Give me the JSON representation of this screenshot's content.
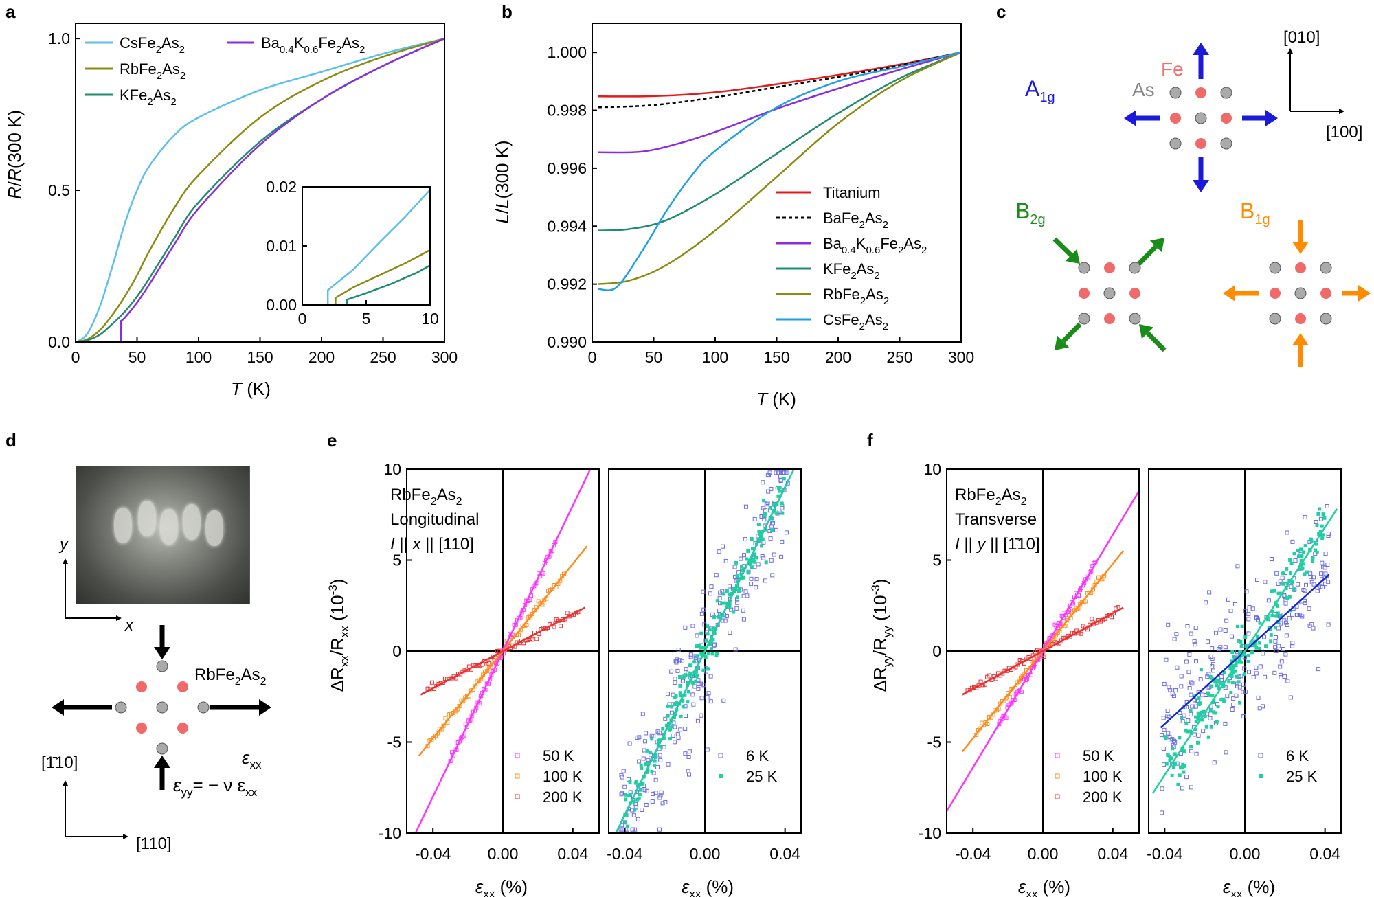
{
  "panels": {
    "a": {
      "label": "a",
      "ylabel_italic": "R",
      "ylabel_mid": "/",
      "ylabel_italic2": "R",
      "ylabel_rest": "(300 K)",
      "xlabel_italic": "T",
      "xlabel_rest": " (K)",
      "yticks": [
        "0.0",
        "0.5",
        "1.0"
      ],
      "xticks": [
        "0",
        "50",
        "100",
        "150",
        "200",
        "250",
        "300"
      ],
      "inset_yticks": [
        "0.00",
        "0.01",
        "0.02"
      ],
      "inset_xticks": [
        "0",
        "5",
        "10"
      ]
    },
    "b": {
      "label": "b",
      "ylabel_italic": "L",
      "ylabel_mid": "/",
      "ylabel_italic2": "L",
      "ylabel_rest": "(300 K)",
      "xlabel_italic": "T",
      "xlabel_rest": " (K)",
      "yticks": [
        "0.990",
        "0.992",
        "0.994",
        "0.996",
        "0.998",
        "1.000"
      ],
      "xticks": [
        "0",
        "50",
        "100",
        "150",
        "200",
        "250",
        "300"
      ]
    },
    "c": {
      "label": "c",
      "a1g": "A",
      "a1g_sub": "1g",
      "b2g": "B",
      "b2g_sub": "2g",
      "b1g": "B",
      "b1g_sub": "1g",
      "as": "As",
      "fe": "Fe",
      "dir_010": "[010]",
      "dir_100": "[100]"
    },
    "d": {
      "label": "d",
      "y": "y",
      "x": "x",
      "compound": "RbFe",
      "compound_sub": "2",
      "compound_as": "As",
      "compound_as_sub": "2",
      "exx": "ε",
      "exx_sub": "xx",
      "eyy_lhs": "ε",
      "eyy_sub": "yy",
      "eyy_rhs": "= − ν ε",
      "eyy_rhs_sub": "xx",
      "dir_110bar": "[1̄10]",
      "dir_110": "[110]"
    },
    "e": {
      "label": "e",
      "anno1": "RbFe",
      "anno1_sub": "2",
      "anno1_as": "As",
      "anno1_as_sub": "2",
      "anno2": "Longitudinal",
      "anno3_i": "I",
      "anno3_mid": " || ",
      "anno3_x": "x",
      "anno3_rest": " || [110]",
      "ylabel": "ΔR",
      "ylabel_sub": "xx",
      "ylabel_mid": "/R",
      "ylabel_sub2": "xx",
      "ylabel_rest": " (10",
      "ylabel_sup": "-3",
      "ylabel_end": ")",
      "yticks": [
        "-10",
        "-5",
        "0",
        "5",
        "10"
      ],
      "xticks": [
        "-0.04",
        "0.00",
        "0.04"
      ],
      "xlabel": "ε",
      "xlabel_sub": "xx",
      "xlabel_rest": " (%)"
    },
    "f": {
      "label": "f",
      "anno1": "RbFe",
      "anno1_sub": "2",
      "anno1_as": "As",
      "anno1_as_sub": "2",
      "anno2": "Transverse",
      "anno3_i": "I",
      "anno3_mid": " || ",
      "anno3_x": "y",
      "anno3_rest": " || [1̄10]",
      "ylabel": "ΔR",
      "ylabel_sub": "yy",
      "ylabel_mid": "/R",
      "ylabel_sub2": "yy",
      "ylabel_rest": " (10",
      "ylabel_sup": "-3",
      "ylabel_end": ")",
      "yticks": [
        "-10",
        "-5",
        "0",
        "5",
        "10"
      ],
      "xticks": [
        "-0.04",
        "0.00",
        "0.04"
      ],
      "xlabel": "ε",
      "xlabel_sub": "xx",
      "xlabel_rest": " (%)"
    }
  },
  "chart_data": [
    {
      "id": "a",
      "type": "line",
      "title": "",
      "xlabel": "T (K)",
      "ylabel": "R/R(300 K)",
      "xlim": [
        0,
        300
      ],
      "ylim": [
        0,
        1.05
      ],
      "series": [
        {
          "name": "CsFe2As2",
          "label": "CsFe",
          "sub": "2",
          "label2": "As",
          "sub2": "2",
          "color": "#5bc0eb",
          "Tc": 2,
          "points": [
            [
              2,
              0.003
            ],
            [
              10,
              0.03
            ],
            [
              20,
              0.12
            ],
            [
              30,
              0.25
            ],
            [
              40,
              0.39
            ],
            [
              50,
              0.5
            ],
            [
              60,
              0.58
            ],
            [
              80,
              0.68
            ],
            [
              100,
              0.74
            ],
            [
              150,
              0.83
            ],
            [
              200,
              0.89
            ],
            [
              250,
              0.95
            ],
            [
              300,
              1.0
            ]
          ]
        },
        {
          "name": "RbFe2As2",
          "label": "RbFe",
          "sub": "2",
          "label2": "As",
          "sub2": "2",
          "color": "#8b8b12",
          "Tc": 2.6,
          "points": [
            [
              2.6,
              0.002
            ],
            [
              10,
              0.01
            ],
            [
              20,
              0.04
            ],
            [
              30,
              0.09
            ],
            [
              40,
              0.15
            ],
            [
              50,
              0.22
            ],
            [
              60,
              0.3
            ],
            [
              80,
              0.44
            ],
            [
              100,
              0.55
            ],
            [
              150,
              0.74
            ],
            [
              200,
              0.86
            ],
            [
              250,
              0.94
            ],
            [
              300,
              1.0
            ]
          ]
        },
        {
          "name": "KFe2As2",
          "label": "KFe",
          "sub": "2",
          "label2": "As",
          "sub2": "2",
          "color": "#1e8c6e",
          "Tc": 3.5,
          "points": [
            [
              3.5,
              0.001
            ],
            [
              10,
              0.006
            ],
            [
              20,
              0.025
            ],
            [
              30,
              0.06
            ],
            [
              40,
              0.1
            ],
            [
              50,
              0.15
            ],
            [
              60,
              0.21
            ],
            [
              80,
              0.34
            ],
            [
              100,
              0.46
            ],
            [
              150,
              0.66
            ],
            [
              200,
              0.8
            ],
            [
              250,
              0.91
            ],
            [
              300,
              1.0
            ]
          ]
        },
        {
          "name": "Ba0.4K0.6Fe2As2",
          "label": "Ba",
          "sub": "0.4",
          "label2": "K",
          "sub2": "0.6",
          "label3": "Fe",
          "sub3": "2",
          "label4": "As",
          "sub4": "2",
          "color": "#8b2be2",
          "Tc": 37,
          "points": [
            [
              37,
              0.0
            ],
            [
              37,
              0.07
            ],
            [
              40,
              0.08
            ],
            [
              50,
              0.13
            ],
            [
              60,
              0.19
            ],
            [
              80,
              0.32
            ],
            [
              100,
              0.44
            ],
            [
              150,
              0.65
            ],
            [
              200,
              0.8
            ],
            [
              250,
              0.91
            ],
            [
              300,
              1.0
            ]
          ]
        }
      ],
      "inset": {
        "xlim": [
          0,
          10
        ],
        "ylim": [
          0,
          0.02
        ],
        "series": [
          {
            "name": "CsFe2As2",
            "points": [
              [
                2,
                0
              ],
              [
                2,
                0.0025
              ],
              [
                4,
                0.006
              ],
              [
                6,
                0.0105
              ],
              [
                8,
                0.0148
              ],
              [
                10,
                0.0195
              ]
            ]
          },
          {
            "name": "RbFe2As2",
            "points": [
              [
                2.6,
                0
              ],
              [
                2.6,
                0.0012
              ],
              [
                4,
                0.003
              ],
              [
                6,
                0.005
              ],
              [
                8,
                0.007
              ],
              [
                10,
                0.0093
              ]
            ]
          },
          {
            "name": "KFe2As2",
            "points": [
              [
                3.5,
                0
              ],
              [
                3.5,
                0.0009
              ],
              [
                5,
                0.002
              ],
              [
                7,
                0.0036
              ],
              [
                9,
                0.0055
              ],
              [
                10,
                0.0067
              ]
            ]
          }
        ]
      }
    },
    {
      "id": "b",
      "type": "line",
      "title": "",
      "xlabel": "T (K)",
      "ylabel": "L/L(300 K)",
      "xlim": [
        0,
        300
      ],
      "ylim": [
        0.99,
        1.001
      ],
      "series": [
        {
          "name": "Titanium",
          "label": "Titanium",
          "color": "#e41a1c",
          "dash": false,
          "points": [
            [
              5,
              0.99848
            ],
            [
              50,
              0.99849
            ],
            [
              100,
              0.99862
            ],
            [
              150,
              0.9989
            ],
            [
              200,
              0.99922
            ],
            [
              250,
              0.99958
            ],
            [
              300,
              1.0
            ]
          ]
        },
        {
          "name": "BaFe2As2",
          "label": "BaFe",
          "sub": "2",
          "label2": "As",
          "sub2": "2",
          "color": "#000000",
          "dash": true,
          "points": [
            [
              5,
              0.9981
            ],
            [
              50,
              0.99818
            ],
            [
              100,
              0.99845
            ],
            [
              150,
              0.9988
            ],
            [
              200,
              0.99915
            ],
            [
              250,
              0.99955
            ],
            [
              300,
              1.0
            ]
          ]
        },
        {
          "name": "Ba0.4K0.6Fe2As2",
          "label": "Ba",
          "sub": "0.4",
          "label2": "K",
          "sub2": "0.6",
          "label3": "Fe",
          "sub3": "2",
          "label4": "As",
          "sub4": "2",
          "color": "#8b2be2",
          "dash": false,
          "points": [
            [
              5,
              0.99655
            ],
            [
              40,
              0.99657
            ],
            [
              70,
              0.99685
            ],
            [
              100,
              0.99725
            ],
            [
              150,
              0.99805
            ],
            [
              200,
              0.99875
            ],
            [
              250,
              0.9994
            ],
            [
              300,
              1.0
            ]
          ]
        },
        {
          "name": "KFe2As2",
          "label": "KFe",
          "sub": "2",
          "label2": "As",
          "sub2": "2",
          "color": "#1e8c6e",
          "dash": false,
          "points": [
            [
              5,
              0.99385
            ],
            [
              30,
              0.9939
            ],
            [
              60,
              0.9942
            ],
            [
              100,
              0.9951
            ],
            [
              150,
              0.9965
            ],
            [
              200,
              0.9979
            ],
            [
              250,
              0.9991
            ],
            [
              300,
              1.0
            ]
          ]
        },
        {
          "name": "RbFe2As2",
          "label": "RbFe",
          "sub": "2",
          "label2": "As",
          "sub2": "2",
          "color": "#8b8b12",
          "dash": false,
          "points": [
            [
              5,
              0.992
            ],
            [
              30,
              0.99212
            ],
            [
              60,
              0.99265
            ],
            [
              100,
              0.99385
            ],
            [
              150,
              0.9957
            ],
            [
              200,
              0.99755
            ],
            [
              250,
              0.999
            ],
            [
              300,
              1.0
            ]
          ]
        },
        {
          "name": "CsFe2As2",
          "label": "CsFe",
          "sub": "2",
          "label2": "As",
          "sub2": "2",
          "color": "#1ea0e6",
          "dash": false,
          "points": [
            [
              5,
              0.99183
            ],
            [
              20,
              0.9919
            ],
            [
              40,
              0.9931
            ],
            [
              60,
              0.9945
            ],
            [
              80,
              0.9957
            ],
            [
              100,
              0.9966
            ],
            [
              150,
              0.9981
            ],
            [
              200,
              0.999
            ],
            [
              250,
              0.9995
            ],
            [
              300,
              1.0
            ]
          ]
        }
      ]
    },
    {
      "id": "e-left",
      "type": "scatter",
      "xlim": [
        -0.055,
        0.055
      ],
      "ylim": [
        -10,
        10
      ],
      "xlabel": "εxx (%)",
      "ylabel": "ΔRxx/Rxx (10^-3)",
      "series": [
        {
          "name": "50 K",
          "color": "#ff33ff",
          "slope": 200,
          "fit_range": [
            -0.05,
            0.05
          ],
          "data_range": [
            -0.03,
            0.03
          ]
        },
        {
          "name": "100 K",
          "color": "#ff8c1a",
          "slope": 120,
          "fit_range": [
            -0.048,
            0.048
          ],
          "data_range": [
            -0.043,
            0.035
          ]
        },
        {
          "name": "200 K",
          "color": "#e83030",
          "slope": 51,
          "fit_range": [
            -0.047,
            0.047
          ],
          "data_range": [
            -0.043,
            0.043
          ]
        }
      ]
    },
    {
      "id": "e-right",
      "type": "scatter",
      "xlim": [
        -0.048,
        0.048
      ],
      "ylim": [
        -10,
        10
      ],
      "series": [
        {
          "name": "6 K",
          "color": "#6b6be6",
          "marker": "open-square",
          "slope": 225,
          "scatter": 2.0,
          "fit_color": "#1428c8",
          "fit_range": [
            -0.042,
            0.042
          ],
          "data_range": [
            -0.042,
            0.042
          ]
        },
        {
          "name": "25 K",
          "color": "#20d0a0",
          "marker": "filled-square",
          "slope": 225,
          "scatter": 0.6,
          "fit_color": "#20d0a0",
          "fit_range": [
            -0.046,
            0.046
          ],
          "data_range": [
            -0.04,
            0.04
          ]
        }
      ]
    },
    {
      "id": "f-left",
      "type": "scatter",
      "xlim": [
        -0.055,
        0.055
      ],
      "ylim": [
        -10,
        10
      ],
      "xlabel": "εxx (%)",
      "ylabel": "ΔRyy/Ryy (10^-3)",
      "series": [
        {
          "name": "50 K",
          "color": "#ff33ff",
          "slope": 160,
          "fit_range": [
            -0.055,
            0.055
          ],
          "data_range": [
            -0.025,
            0.03
          ]
        },
        {
          "name": "100 K",
          "color": "#ff8c1a",
          "slope": 120,
          "fit_range": [
            -0.046,
            0.046
          ],
          "data_range": [
            -0.038,
            0.035
          ]
        },
        {
          "name": "200 K",
          "color": "#e83030",
          "slope": 52,
          "fit_range": [
            -0.046,
            0.046
          ],
          "data_range": [
            -0.043,
            0.043
          ]
        }
      ]
    },
    {
      "id": "f-right",
      "type": "scatter",
      "xlim": [
        -0.048,
        0.048
      ],
      "ylim": [
        -10,
        10
      ],
      "series": [
        {
          "name": "6 K",
          "color": "#6b6be6",
          "marker": "open-square",
          "slope": 100,
          "scatter": 2.0,
          "fit_color": "#1428c8",
          "fit_range": [
            -0.042,
            0.042
          ],
          "data_range": [
            -0.042,
            0.042
          ]
        },
        {
          "name": "25 K",
          "color": "#20d0a0",
          "marker": "filled-square",
          "slope": 170,
          "scatter": 0.8,
          "fit_color": "#20d0a0",
          "fit_range": [
            -0.046,
            0.046
          ],
          "data_range": [
            -0.04,
            0.04
          ]
        }
      ]
    }
  ]
}
